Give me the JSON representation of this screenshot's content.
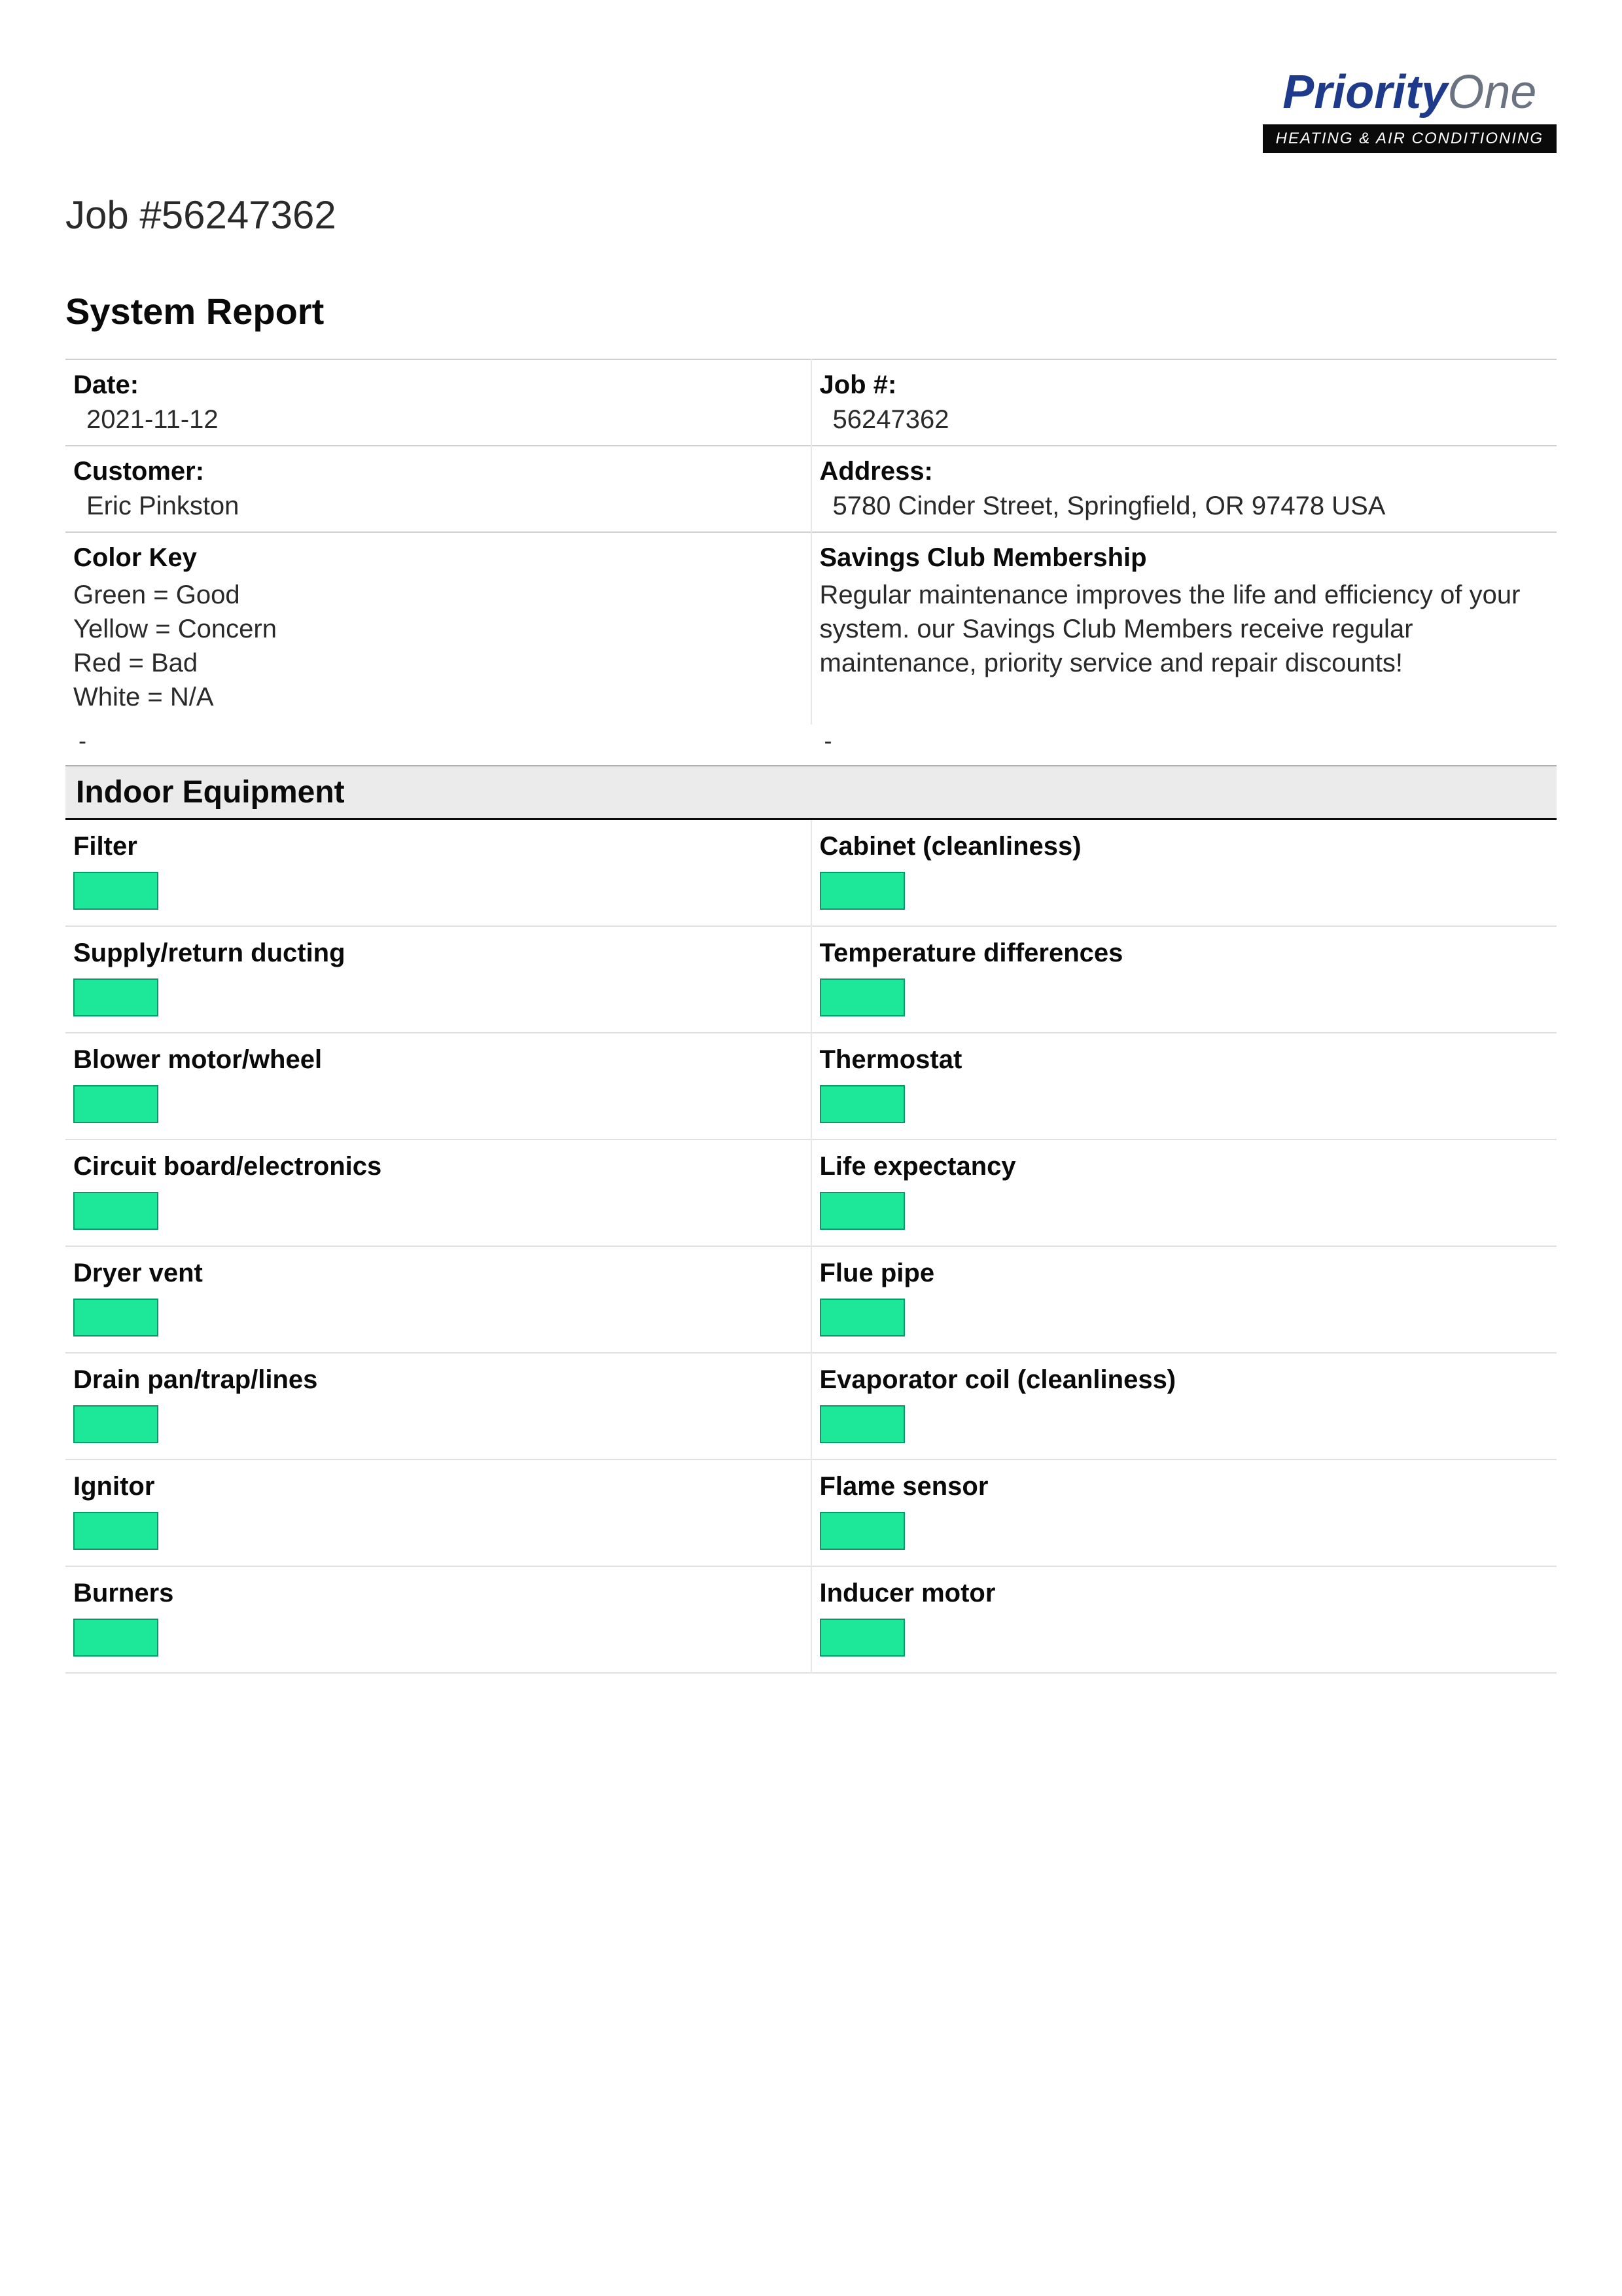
{
  "logo": {
    "main1": "Priority",
    "main2": "One",
    "subtitle": "HEATING & AIR CONDITIONING"
  },
  "job_title": "Job #56247362",
  "report_title": "System Report",
  "info": {
    "date_label": "Date:",
    "date_value": "2021-11-12",
    "job_label": "Job #:",
    "job_value": "56247362",
    "customer_label": "Customer:",
    "customer_value": "Eric Pinkston",
    "address_label": "Address:",
    "address_value": "5780 Cinder Street, Springfield, OR 97478 USA",
    "colorkey_label": "Color Key",
    "colorkey_line1": "Green = Good",
    "colorkey_line2": "Yellow = Concern",
    "colorkey_line3": "Red = Bad",
    "colorkey_line4": "White = N/A",
    "savings_label": "Savings Club Membership",
    "savings_text": "Regular maintenance improves the life and efficiency of your system. our Savings Club Members receive regular maintenance, priority service and repair discounts!",
    "dash": "-"
  },
  "section_indoor": "Indoor Equipment",
  "equipment": {
    "filter": "Filter",
    "cabinet": "Cabinet (cleanliness)",
    "supply": "Supply/return ducting",
    "temp": "Temperature differences",
    "blower": "Blower motor/wheel",
    "thermostat": "Thermostat",
    "circuit": "Circuit board/electronics",
    "life": "Life expectancy",
    "dryer": "Dryer vent",
    "flue": "Flue pipe",
    "drain": "Drain pan/trap/lines",
    "evap": "Evaporator coil (cleanliness)",
    "ignitor": "Ignitor",
    "flame": "Flame sensor",
    "burners": "Burners",
    "inducer": "Inducer motor"
  },
  "colors": {
    "status_green_bg": "#1de89a",
    "status_green_border": "#0a9a6a"
  }
}
